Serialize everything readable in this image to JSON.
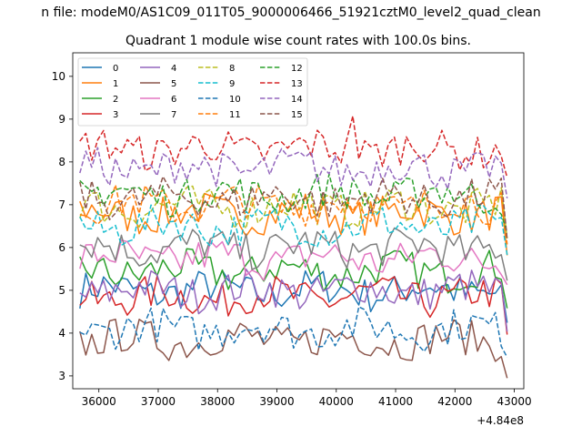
{
  "suptitle": "n file: modeM0/AS1C09_011T05_9000006466_51921cztM0_level2_quad_clean",
  "chart_data": {
    "type": "line",
    "title": "Quadrant 1 module wise count rates with 100.0s bins.",
    "xlabel": "",
    "ylabel": "",
    "x_offset_label": "+4.84e8",
    "xlim": [
      35560,
      43160
    ],
    "ylim": [
      2.7,
      10.55
    ],
    "xticks": [
      36000,
      37000,
      38000,
      39000,
      40000,
      41000,
      42000,
      43000
    ],
    "yticks": [
      3,
      4,
      5,
      6,
      7,
      8,
      9,
      10
    ],
    "x_start": 35680,
    "x_step": 100,
    "legend_position": "upper-left",
    "legend_columns": 4,
    "series": [
      {
        "name": "0",
        "color": "#1f77b4",
        "dash": "solid",
        "base": 5.0
      },
      {
        "name": "1",
        "color": "#ff7f0e",
        "dash": "solid",
        "base": 6.8
      },
      {
        "name": "2",
        "color": "#2ca02c",
        "dash": "solid",
        "base": 5.45
      },
      {
        "name": "3",
        "color": "#d62728",
        "dash": "solid",
        "base": 4.85
      },
      {
        "name": "4",
        "color": "#9467bd",
        "dash": "solid",
        "base": 5.0
      },
      {
        "name": "5",
        "color": "#8c564b",
        "dash": "solid",
        "base": 3.85
      },
      {
        "name": "6",
        "color": "#e377c2",
        "dash": "solid",
        "base": 5.75
      },
      {
        "name": "7",
        "color": "#7f7f7f",
        "dash": "solid",
        "base": 6.0
      },
      {
        "name": "8",
        "color": "#bcbd22",
        "dash": "dashed",
        "base": 6.95
      },
      {
        "name": "9",
        "color": "#17becf",
        "dash": "dashed",
        "base": 6.5
      },
      {
        "name": "10",
        "color": "#1f77b4",
        "dash": "dashed",
        "base": 4.1
      },
      {
        "name": "11",
        "color": "#ff7f0e",
        "dash": "dashed",
        "base": 7.0
      },
      {
        "name": "12",
        "color": "#2ca02c",
        "dash": "dashed",
        "base": 7.25
      },
      {
        "name": "13",
        "color": "#d62728",
        "dash": "dashed",
        "base": 8.3
      },
      {
        "name": "14",
        "color": "#9467bd",
        "dash": "dashed",
        "base": 7.85
      },
      {
        "name": "15",
        "color": "#8c564b",
        "dash": "dashed",
        "base": 7.15
      }
    ]
  }
}
